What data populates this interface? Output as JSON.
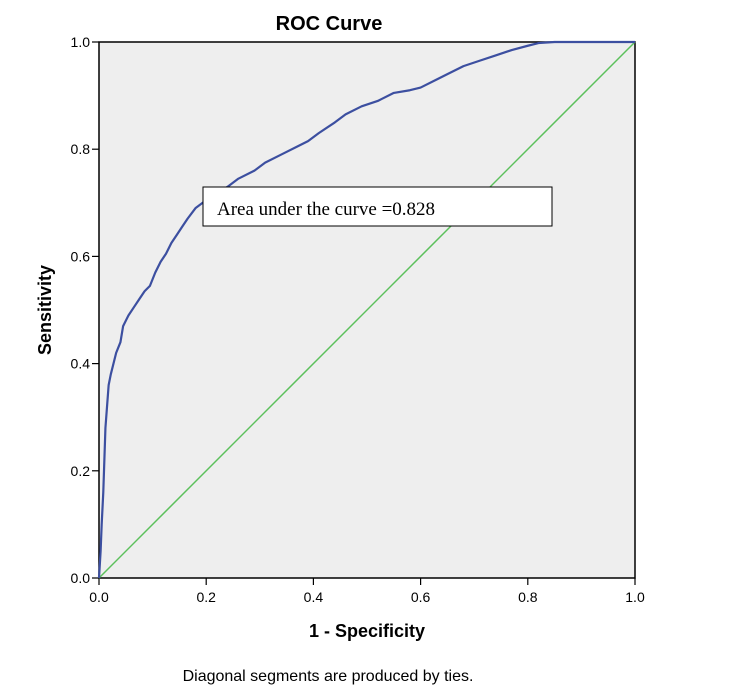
{
  "chart_data": {
    "type": "line",
    "title": "ROC Curve",
    "xlabel": "1 - Specificity",
    "ylabel": "Sensitivity",
    "xlim": [
      0,
      1
    ],
    "ylim": [
      0,
      1
    ],
    "x_ticks": [
      "0.0",
      "0.2",
      "0.4",
      "0.6",
      "0.8",
      "1.0"
    ],
    "y_ticks": [
      "0.0",
      "0.2",
      "0.4",
      "0.6",
      "0.8",
      "1.0"
    ],
    "grid": false,
    "background_color": "#eeeeee",
    "annotation": "Area under the curve =0.828",
    "footnote": "Diagonal segments are produced by ties.",
    "series": [
      {
        "color": "#3c4fa0",
        "points": [
          [
            0.0,
            0.0
          ],
          [
            0.003,
            0.05
          ],
          [
            0.005,
            0.1
          ],
          [
            0.008,
            0.16
          ],
          [
            0.01,
            0.22
          ],
          [
            0.012,
            0.28
          ],
          [
            0.015,
            0.32
          ],
          [
            0.018,
            0.36
          ],
          [
            0.022,
            0.38
          ],
          [
            0.027,
            0.4
          ],
          [
            0.032,
            0.42
          ],
          [
            0.04,
            0.44
          ],
          [
            0.045,
            0.47
          ],
          [
            0.055,
            0.49
          ],
          [
            0.065,
            0.505
          ],
          [
            0.075,
            0.52
          ],
          [
            0.085,
            0.535
          ],
          [
            0.095,
            0.545
          ],
          [
            0.105,
            0.57
          ],
          [
            0.115,
            0.59
          ],
          [
            0.125,
            0.605
          ],
          [
            0.135,
            0.625
          ],
          [
            0.145,
            0.64
          ],
          [
            0.155,
            0.655
          ],
          [
            0.165,
            0.67
          ],
          [
            0.18,
            0.69
          ],
          [
            0.2,
            0.705
          ],
          [
            0.22,
            0.718
          ],
          [
            0.24,
            0.73
          ],
          [
            0.26,
            0.745
          ],
          [
            0.29,
            0.76
          ],
          [
            0.31,
            0.775
          ],
          [
            0.34,
            0.79
          ],
          [
            0.37,
            0.805
          ],
          [
            0.39,
            0.815
          ],
          [
            0.41,
            0.83
          ],
          [
            0.44,
            0.85
          ],
          [
            0.46,
            0.865
          ],
          [
            0.49,
            0.88
          ],
          [
            0.52,
            0.89
          ],
          [
            0.55,
            0.905
          ],
          [
            0.58,
            0.91
          ],
          [
            0.6,
            0.915
          ],
          [
            0.63,
            0.93
          ],
          [
            0.65,
            0.94
          ],
          [
            0.68,
            0.955
          ],
          [
            0.71,
            0.965
          ],
          [
            0.74,
            0.975
          ],
          [
            0.77,
            0.985
          ],
          [
            0.8,
            0.993
          ],
          [
            0.82,
            0.998
          ],
          [
            0.85,
            1.0
          ],
          [
            0.9,
            1.0
          ],
          [
            1.0,
            1.0
          ]
        ]
      },
      {
        "color": "#5cc05c",
        "points": [
          [
            0,
            0
          ],
          [
            1,
            1
          ]
        ]
      }
    ]
  }
}
